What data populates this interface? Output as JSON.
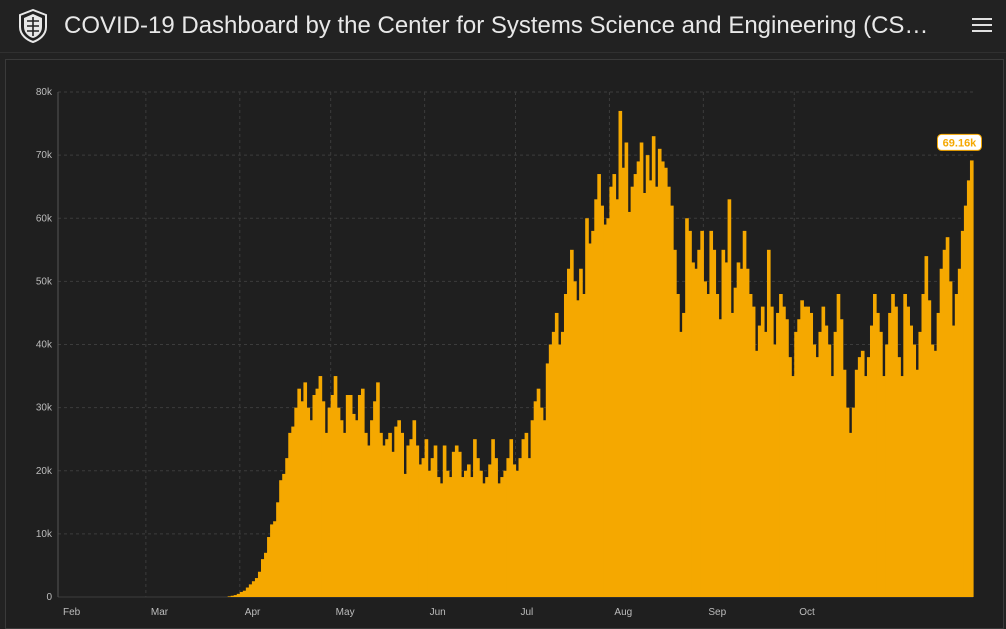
{
  "header": {
    "title": "COVID-19 Dashboard by the Center for Systems Science and Engineering (CS…",
    "logo_icon": "university-shield-icon",
    "menu_icon": "hamburger-menu-icon"
  },
  "colors": {
    "bar": "#f5a800",
    "background": "#222222",
    "grid": "#3c3c3c"
  },
  "chart_data": {
    "type": "bar",
    "title": "",
    "xlabel": "",
    "ylabel": "",
    "ylim": [
      0,
      80000
    ],
    "grid": true,
    "y_ticks": [
      {
        "value": 0,
        "label": "0"
      },
      {
        "value": 10000,
        "label": "10k"
      },
      {
        "value": 20000,
        "label": "20k"
      },
      {
        "value": 30000,
        "label": "30k"
      },
      {
        "value": 40000,
        "label": "40k"
      },
      {
        "value": 50000,
        "label": "50k"
      },
      {
        "value": 60000,
        "label": "60k"
      },
      {
        "value": 70000,
        "label": "70k"
      },
      {
        "value": 80000,
        "label": "80k"
      }
    ],
    "x_ticks": [
      {
        "index": 0,
        "label": "Feb"
      },
      {
        "index": 29,
        "label": "Mar"
      },
      {
        "index": 60,
        "label": "Apr"
      },
      {
        "index": 90,
        "label": "May"
      },
      {
        "index": 121,
        "label": "Jun"
      },
      {
        "index": 151,
        "label": "Jul"
      },
      {
        "index": 182,
        "label": "Aug"
      },
      {
        "index": 213,
        "label": "Sep"
      },
      {
        "index": 243,
        "label": "Oct"
      }
    ],
    "first_date": "2020-01-22",
    "series": [
      {
        "values": [
          0,
          0,
          0,
          0,
          0,
          0,
          0,
          0,
          0,
          0,
          0,
          0,
          0,
          0,
          0,
          0,
          0,
          0,
          0,
          0,
          0,
          0,
          0,
          0,
          0,
          0,
          0,
          0,
          0,
          0,
          0,
          0,
          0,
          0,
          0,
          0,
          0,
          0,
          0,
          0,
          0,
          0,
          0,
          0,
          0,
          0,
          0,
          0,
          0,
          0,
          0,
          0,
          0,
          0,
          0,
          0,
          100,
          200,
          300,
          500,
          800,
          1000,
          1500,
          2000,
          2500,
          3000,
          4000,
          6000,
          7000,
          9500,
          11500,
          12000,
          15000,
          18500,
          19500,
          22000,
          26000,
          27000,
          30000,
          33000,
          31000,
          34000,
          30000,
          28000,
          32000,
          33000,
          35000,
          31000,
          26000,
          30000,
          32000,
          35000,
          30000,
          28000,
          26000,
          32000,
          32000,
          29000,
          28000,
          32000,
          33000,
          26000,
          24000,
          28000,
          31000,
          34000,
          26000,
          24000,
          25000,
          26000,
          23000,
          27000,
          28000,
          26000,
          19500,
          24000,
          25000,
          28000,
          24000,
          21000,
          22000,
          25000,
          20000,
          22000,
          24000,
          19000,
          18000,
          24000,
          20000,
          19000,
          23000,
          24000,
          23000,
          19000,
          20000,
          21000,
          19000,
          25000,
          22000,
          20000,
          18000,
          19000,
          21000,
          25000,
          22000,
          18000,
          19000,
          20000,
          22000,
          25000,
          21000,
          20000,
          22000,
          25000,
          26000,
          22000,
          28000,
          31000,
          33000,
          30000,
          28000,
          37000,
          40000,
          42000,
          45000,
          40000,
          42000,
          48000,
          52000,
          55000,
          50000,
          47000,
          52000,
          48000,
          60000,
          56000,
          58000,
          63000,
          67000,
          62000,
          59000,
          60000,
          65000,
          67000,
          63000,
          77000,
          68000,
          72000,
          61000,
          65000,
          67000,
          69000,
          72000,
          64000,
          70000,
          66000,
          73000,
          65000,
          71000,
          69000,
          68000,
          65000,
          62000,
          55000,
          48000,
          42000,
          45000,
          60000,
          58000,
          53000,
          52000,
          55000,
          58000,
          50000,
          48000,
          58000,
          55000,
          48000,
          44000,
          55000,
          53000,
          63000,
          45000,
          49000,
          53000,
          52000,
          58000,
          52000,
          48000,
          46000,
          39000,
          43000,
          46000,
          42000,
          55000,
          46000,
          40000,
          45000,
          48000,
          46000,
          44000,
          38000,
          35000,
          42000,
          44000,
          47000,
          46000,
          46000,
          45000,
          40000,
          38000,
          42000,
          46000,
          43000,
          40000,
          35000,
          42000,
          48000,
          44000,
          36000,
          30000,
          26000,
          30000,
          36000,
          38000,
          39000,
          35000,
          38000,
          43000,
          48000,
          45000,
          42000,
          35000,
          40000,
          45000,
          48000,
          46000,
          38000,
          35000,
          48000,
          46000,
          43000,
          40000,
          36000,
          42000,
          48000,
          54000,
          47000,
          40000,
          39000,
          45000,
          52000,
          55000,
          57000,
          50000,
          43000,
          48000,
          52000,
          58000,
          62000,
          66000,
          69160
        ]
      }
    ],
    "annotations": [
      {
        "index": -1,
        "label": "69.16k"
      }
    ]
  }
}
